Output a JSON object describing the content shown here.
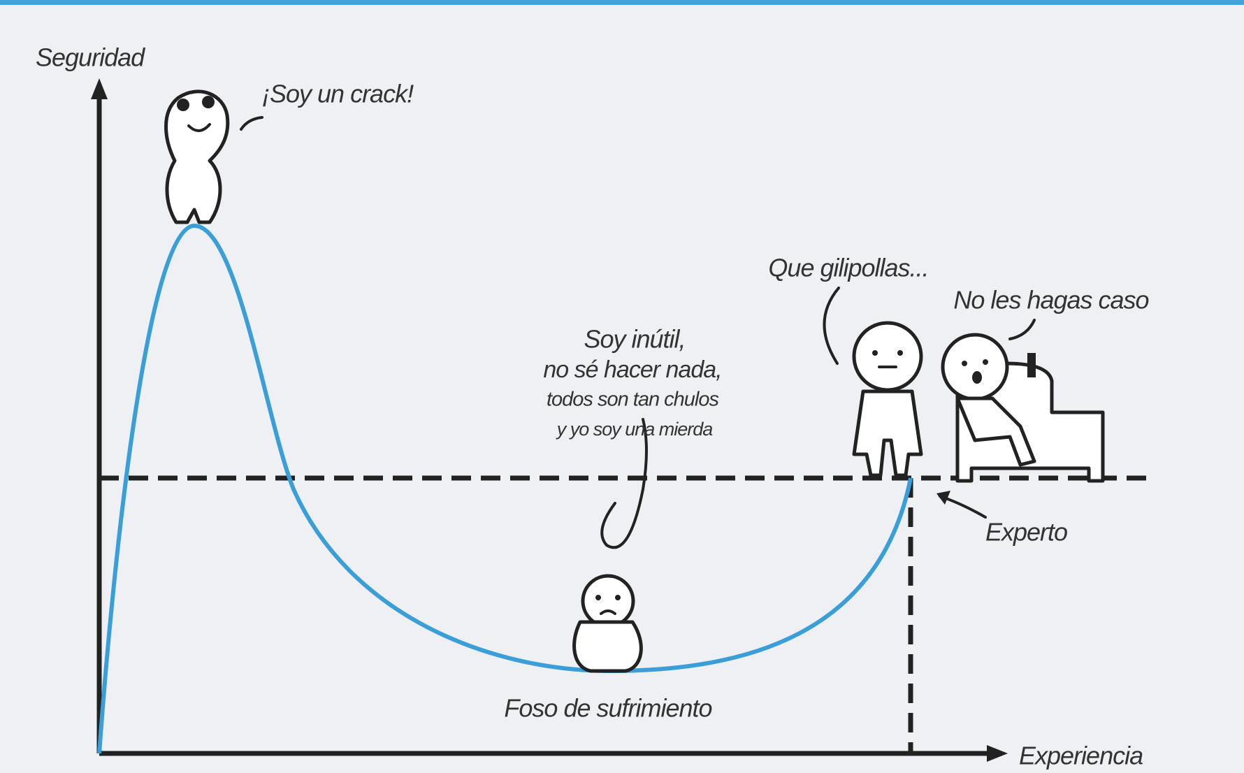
{
  "axes": {
    "y_label": "Seguridad",
    "x_label": "Experiencia"
  },
  "annotations": {
    "peak": "¡Soy un crack!",
    "pit_thought": [
      "Soy inútil,",
      "no sé hacer nada,",
      "todos son tan chulos",
      "y yo soy una mierda"
    ],
    "pit": "Foso de sufrimiento",
    "standing": "Que gilipollas...",
    "sitting": "No les hagas caso",
    "expert": "Experto"
  }
}
